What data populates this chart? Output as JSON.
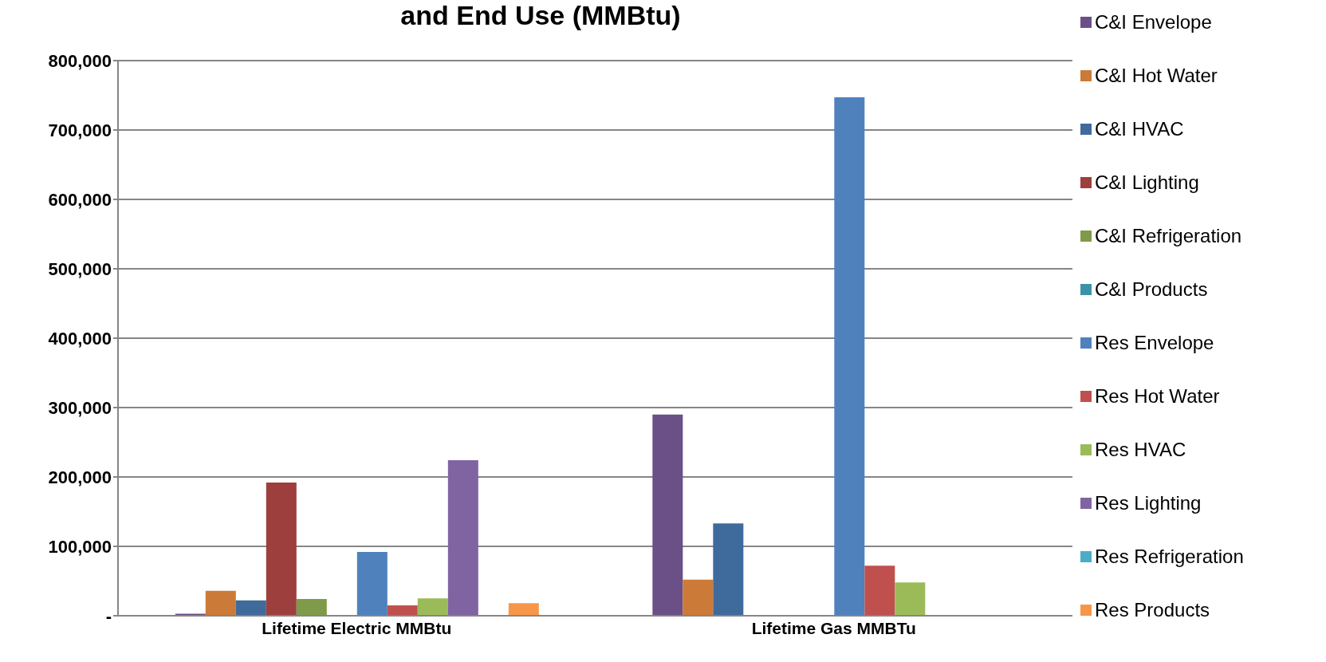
{
  "chart_data": {
    "type": "bar",
    "title": "and End Use (MMBtu)",
    "categories": [
      "Lifetime Electric MMBtu",
      "Lifetime Gas MMBTu"
    ],
    "series": [
      {
        "name": "C&I Envelope",
        "color": "#6a5086",
        "values": [
          3000,
          290000
        ]
      },
      {
        "name": "C&I Hot Water",
        "color": "#cb7a37",
        "values": [
          36000,
          52000
        ]
      },
      {
        "name": "C&I HVAC",
        "color": "#3f6a9c",
        "values": [
          22000,
          133000
        ]
      },
      {
        "name": "C&I Lighting",
        "color": "#9d3f3d",
        "values": [
          192000,
          null
        ]
      },
      {
        "name": "C&I Refrigeration",
        "color": "#7f9a48",
        "values": [
          24000,
          null
        ]
      },
      {
        "name": "C&I Products",
        "color": "#3a93a8",
        "values": [
          null,
          null
        ]
      },
      {
        "name": "Res Envelope",
        "color": "#4f81bd",
        "values": [
          92000,
          747000
        ]
      },
      {
        "name": "Res Hot Water",
        "color": "#c0504d",
        "values": [
          15000,
          72000
        ]
      },
      {
        "name": "Res HVAC",
        "color": "#9bbb59",
        "values": [
          25000,
          48000
        ]
      },
      {
        "name": "Res Lighting",
        "color": "#8064a2",
        "values": [
          224000,
          null
        ]
      },
      {
        "name": "Res Refrigeration",
        "color": "#4bacc6",
        "values": [
          null,
          null
        ]
      },
      {
        "name": "Res Products",
        "color": "#f79646",
        "values": [
          18000,
          null
        ]
      }
    ],
    "ylim": [
      0,
      800000
    ],
    "yticks": [
      {
        "value": 0,
        "label": "-"
      },
      {
        "value": 100000,
        "label": "100,000"
      },
      {
        "value": 200000,
        "label": "200,000"
      },
      {
        "value": 300000,
        "label": "300,000"
      },
      {
        "value": 400000,
        "label": "400,000"
      },
      {
        "value": 500000,
        "label": "500,000"
      },
      {
        "value": 600000,
        "label": "600,000"
      },
      {
        "value": 700000,
        "label": "700,000"
      },
      {
        "value": 800000,
        "label": "800,000"
      }
    ],
    "grid": "y",
    "legend": "right"
  }
}
